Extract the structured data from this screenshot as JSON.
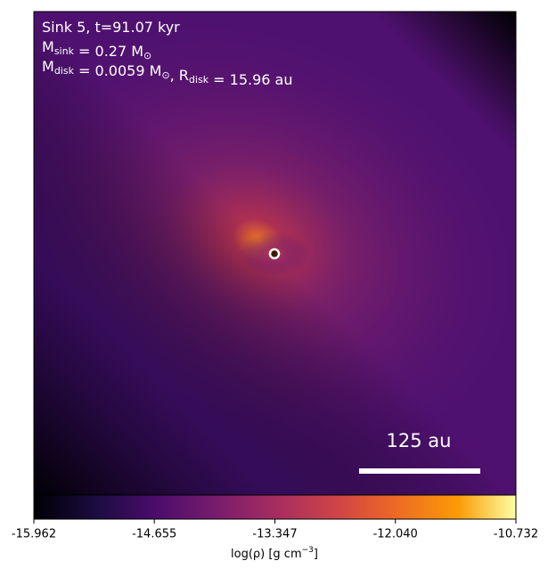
{
  "chart_data": {
    "type": "image",
    "annotations": [
      [
        {
          "text": "Sink 5, t=91.07 kyr"
        }
      ],
      [
        {
          "text": "M",
          "sub": "sink"
        },
        {
          "text": " = 0.27 M",
          "sub": "⊙"
        }
      ],
      [
        {
          "text": "M",
          "sub": "disk"
        },
        {
          "text": " = 0.0059 M",
          "sub": "⊙"
        },
        {
          "text": ", R",
          "sub": "disk"
        },
        {
          "text": " = 15.96 au"
        }
      ]
    ],
    "scale_bar_label": "125 au",
    "colorbar": {
      "label": {
        "text": "log(ρ) [g cm",
        "sup": "−3",
        "end": "]"
      },
      "lim": [
        -15.962,
        -10.732
      ],
      "ticks": [
        -15.962,
        -14.655,
        -13.347,
        {
          "value": -12.04,
          "label": "-12.040"
        },
        -10.732
      ]
    }
  }
}
